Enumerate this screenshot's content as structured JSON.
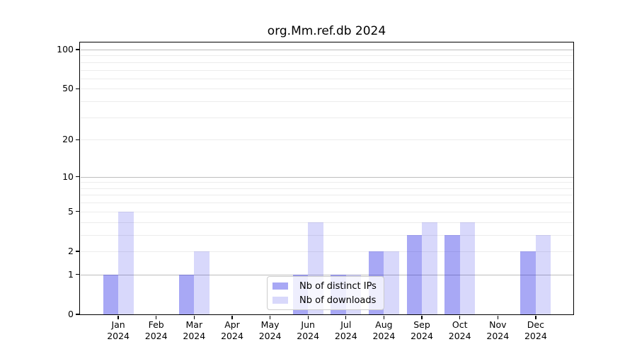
{
  "figure": {
    "title": "org.Mm.ref.db 2024"
  },
  "chart_data": {
    "type": "bar",
    "title": "org.Mm.ref.db 2024",
    "xlabel": "",
    "ylabel": "",
    "yscale": "log1p",
    "ylim": [
      0,
      113
    ],
    "yticks": [
      0,
      1,
      2,
      5,
      10,
      20,
      50,
      100
    ],
    "yticks_minor": [
      3,
      4,
      6,
      7,
      8,
      9,
      30,
      40,
      60,
      70,
      80,
      90
    ],
    "decade_gridlines": [
      1,
      10,
      100
    ],
    "grid": true,
    "legend_position": "lower center",
    "categories": [
      "Jan 2024",
      "Feb 2024",
      "Mar 2024",
      "Apr 2024",
      "May 2024",
      "Jun 2024",
      "Jul 2024",
      "Aug 2024",
      "Sep 2024",
      "Oct 2024",
      "Nov 2024",
      "Dec 2024"
    ],
    "series": [
      {
        "name": "Nb of distinct IPs",
        "color": "rgba(25,25,230,0.38)",
        "values": [
          1,
          0,
          1,
          0,
          0,
          1,
          1,
          2,
          3,
          3,
          0,
          2
        ]
      },
      {
        "name": "Nb of downloads",
        "color": "rgba(25,25,230,0.17)",
        "values": [
          5,
          0,
          2,
          0,
          0,
          4,
          1,
          2,
          4,
          4,
          0,
          3
        ]
      }
    ],
    "colors": {
      "grid_major": "#bdbdbd",
      "grid_minor": "#ececec",
      "frame": "#000000",
      "text": "#000000"
    }
  }
}
